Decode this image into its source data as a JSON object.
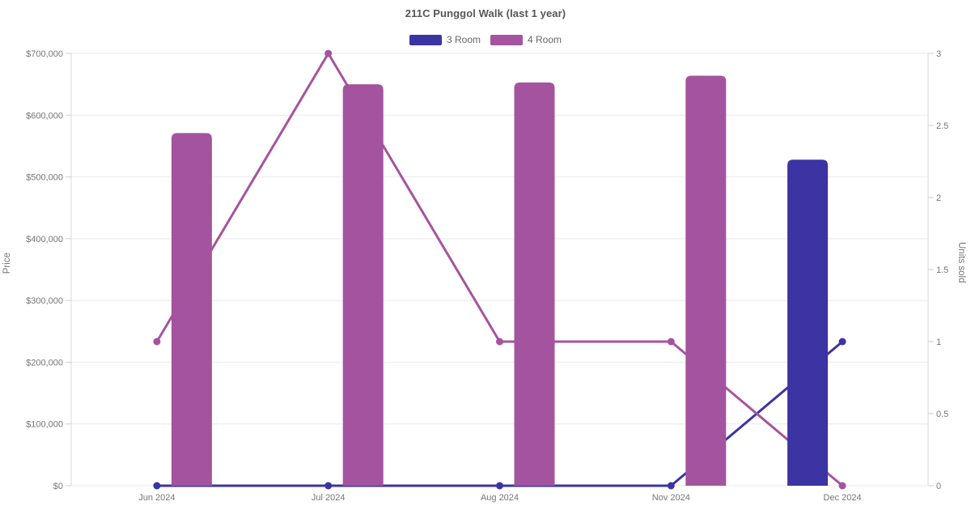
{
  "title": "211C Punggol Walk (last 1 year)",
  "chart_data": {
    "type": "combo-bar-line",
    "title": "211C Punggol Walk (last 1 year)",
    "categories": [
      "Jun 2024",
      "Jul 2024",
      "Aug 2024",
      "Nov 2024",
      "Dec 2024"
    ],
    "bars_use_axis": "left (Price)",
    "lines_use_axis": "right (Units sold)",
    "series": [
      {
        "name": "3 Room",
        "color": "#3b34a2",
        "prices": [
          null,
          null,
          null,
          null,
          528000
        ],
        "units_sold": [
          0,
          0,
          0,
          0,
          1
        ]
      },
      {
        "name": "4 Room",
        "color": "#a4549e",
        "prices": [
          571000,
          650000,
          653000,
          664000,
          null
        ],
        "units_sold": [
          1,
          3,
          1,
          1,
          0
        ]
      }
    ],
    "left_axis": {
      "label": "Price",
      "min": 0,
      "max": 700000,
      "tick_labels": [
        "$0",
        "$100,000",
        "$200,000",
        "$300,000",
        "$400,000",
        "$500,000",
        "$600,000",
        "$700,000"
      ]
    },
    "right_axis": {
      "label": "Units sold",
      "min": 0,
      "max": 3,
      "tick_labels": [
        "0",
        "0.5",
        "1",
        "1.5",
        "2",
        "2.5",
        "3"
      ]
    },
    "legend_position": "top-center",
    "grid": "horizontal-only"
  },
  "colors": {
    "background": "#ffffff",
    "gridline": "#e9e9e9",
    "axis_line": "#d9d9d9",
    "tick_mark": "#cfcfcf",
    "tick_text": "#757575",
    "title_text": "#565656",
    "legend_text": "#666666"
  }
}
